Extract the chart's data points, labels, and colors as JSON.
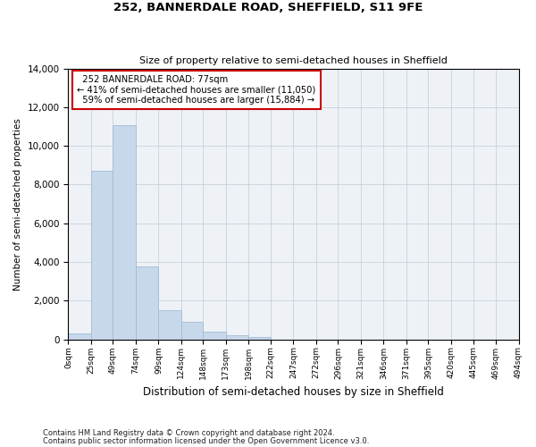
{
  "title1": "252, BANNERDALE ROAD, SHEFFIELD, S11 9FE",
  "title2": "Size of property relative to semi-detached houses in Sheffield",
  "xlabel": "Distribution of semi-detached houses by size in Sheffield",
  "ylabel": "Number of semi-detached properties",
  "property_size": 77,
  "property_label": "252 BANNERDALE ROAD: 77sqm",
  "pct_smaller": 41,
  "count_smaller": 11050,
  "pct_larger": 59,
  "count_larger": 15884,
  "bar_edges": [
    0,
    25,
    49,
    74,
    99,
    124,
    148,
    173,
    198,
    222,
    247,
    272,
    296,
    321,
    346,
    371,
    395,
    420,
    445,
    469,
    494
  ],
  "bar_labels": [
    "0sqm",
    "25sqm",
    "49sqm",
    "74sqm",
    "99sqm",
    "124sqm",
    "148sqm",
    "173sqm",
    "198sqm",
    "222sqm",
    "247sqm",
    "272sqm",
    "296sqm",
    "321sqm",
    "346sqm",
    "371sqm",
    "395sqm",
    "420sqm",
    "445sqm",
    "469sqm",
    "494sqm"
  ],
  "bar_heights": [
    300,
    8700,
    11050,
    3750,
    1500,
    900,
    400,
    200,
    100,
    0,
    0,
    0,
    0,
    0,
    0,
    0,
    0,
    0,
    0,
    0
  ],
  "bar_color": "#c8d8eb",
  "bar_edgecolor": "#a0bcd4",
  "line_color": "#cc0000",
  "box_edgecolor": "#cc0000",
  "ylim": [
    0,
    14000
  ],
  "footnote1": "Contains HM Land Registry data © Crown copyright and database right 2024.",
  "footnote2": "Contains public sector information licensed under the Open Government Licence v3.0.",
  "background_color": "#eef2f7"
}
